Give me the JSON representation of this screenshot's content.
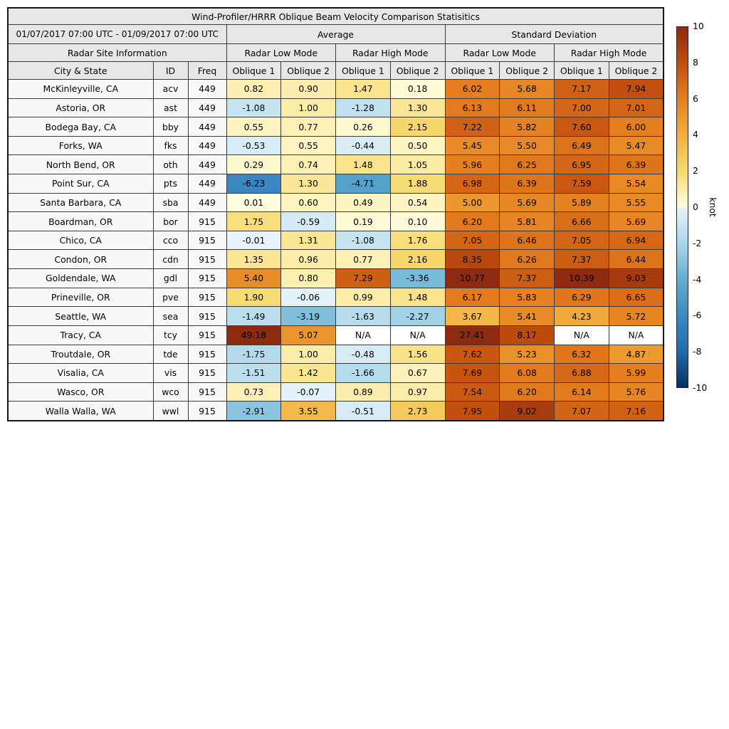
{
  "chart_data": {
    "type": "heatmap",
    "title": "Wind-Profiler/HRRR Oblique Beam Velocity Comparison Statisitics",
    "header": {
      "date_range": "01/07/2017 07:00 UTC - 01/09/2017 07:00 UTC",
      "group_average": "Average",
      "group_std_dev": "Standard Deviation",
      "site_info": "Radar Site Information",
      "radar_low_mode": "Radar Low Mode",
      "radar_high_mode": "Radar High Mode",
      "col_city_state": "City & State",
      "col_id": "ID",
      "col_freq": "Freq",
      "col_oblique1": "Oblique 1",
      "col_oblique2": "Oblique 2"
    },
    "value_columns": [
      "avg-low-oblique1",
      "avg-low-oblique2",
      "avg-high-oblique1",
      "avg-high-oblique2",
      "std-low-oblique1",
      "std-low-oblique2",
      "std-high-oblique1",
      "std-high-oblique2"
    ],
    "rows": [
      {
        "city": "McKinleyville, CA",
        "id": "acv",
        "freq": "449",
        "values": [
          "0.82",
          "0.90",
          "1.47",
          "0.18",
          "6.02",
          "5.68",
          "7.17",
          "7.94"
        ]
      },
      {
        "city": "Astoria, OR",
        "id": "ast",
        "freq": "449",
        "values": [
          "-1.08",
          "1.00",
          "-1.28",
          "1.30",
          "6.13",
          "6.11",
          "7.00",
          "7.01"
        ]
      },
      {
        "city": "Bodega Bay, CA",
        "id": "bby",
        "freq": "449",
        "values": [
          "0.55",
          "0.77",
          "0.26",
          "2.15",
          "7.22",
          "5.82",
          "7.60",
          "6.00"
        ]
      },
      {
        "city": "Forks, WA",
        "id": "fks",
        "freq": "449",
        "values": [
          "-0.53",
          "0.55",
          "-0.44",
          "0.50",
          "5.45",
          "5.50",
          "6.49",
          "5.47"
        ]
      },
      {
        "city": "North Bend, OR",
        "id": "oth",
        "freq": "449",
        "values": [
          "0.29",
          "0.74",
          "1.48",
          "1.05",
          "5.96",
          "6.25",
          "6.95",
          "6.39"
        ]
      },
      {
        "city": "Point Sur, CA",
        "id": "pts",
        "freq": "449",
        "values": [
          "-6.23",
          "1.30",
          "-4.71",
          "1.88",
          "6.98",
          "6.39",
          "7.59",
          "5.54"
        ]
      },
      {
        "city": "Santa Barbara, CA",
        "id": "sba",
        "freq": "449",
        "values": [
          "0.01",
          "0.60",
          "0.49",
          "0.54",
          "5.00",
          "5.69",
          "5.89",
          "5.55"
        ]
      },
      {
        "city": "Boardman, OR",
        "id": "bor",
        "freq": "915",
        "values": [
          "1.75",
          "-0.59",
          "0.19",
          "0.10",
          "6.20",
          "5.81",
          "6.66",
          "5.69"
        ]
      },
      {
        "city": "Chico, CA",
        "id": "cco",
        "freq": "915",
        "values": [
          "-0.01",
          "1.31",
          "-1.08",
          "1.76",
          "7.05",
          "6.46",
          "7.05",
          "6.94"
        ]
      },
      {
        "city": "Condon, OR",
        "id": "cdn",
        "freq": "915",
        "values": [
          "1.35",
          "0.96",
          "0.77",
          "2.16",
          "8.35",
          "6.26",
          "7.37",
          "6.44"
        ]
      },
      {
        "city": "Goldendale, WA",
        "id": "gdl",
        "freq": "915",
        "values": [
          "5.40",
          "0.80",
          "7.29",
          "-3.36",
          "10.77",
          "7.37",
          "10.39",
          "9.03"
        ]
      },
      {
        "city": "Prineville, OR",
        "id": "pve",
        "freq": "915",
        "values": [
          "1.90",
          "-0.06",
          "0.99",
          "1.48",
          "6.17",
          "5.83",
          "6.29",
          "6.65"
        ]
      },
      {
        "city": "Seattle, WA",
        "id": "sea",
        "freq": "915",
        "values": [
          "-1.49",
          "-3.19",
          "-1.63",
          "-2.27",
          "3.67",
          "5.41",
          "4.23",
          "5.72"
        ]
      },
      {
        "city": "Tracy, CA",
        "id": "tcy",
        "freq": "915",
        "values": [
          "49.18",
          "5.07",
          "N/A",
          "N/A",
          "27.41",
          "8.17",
          "N/A",
          "N/A"
        ]
      },
      {
        "city": "Troutdale, OR",
        "id": "tde",
        "freq": "915",
        "values": [
          "-1.75",
          "1.00",
          "-0.48",
          "1.56",
          "7.62",
          "5.23",
          "6.32",
          "4.87"
        ]
      },
      {
        "city": "Visalia, CA",
        "id": "vis",
        "freq": "915",
        "values": [
          "-1.51",
          "1.42",
          "-1.66",
          "0.67",
          "7.69",
          "6.08",
          "6.88",
          "5.99"
        ]
      },
      {
        "city": "Wasco, OR",
        "id": "wco",
        "freq": "915",
        "values": [
          "0.73",
          "-0.07",
          "0.89",
          "0.97",
          "7.54",
          "6.20",
          "6.14",
          "5.76"
        ]
      },
      {
        "city": "Walla Walla, WA",
        "id": "wwl",
        "freq": "915",
        "values": [
          "-2.91",
          "3.55",
          "-0.51",
          "2.73",
          "7.95",
          "9.02",
          "7.07",
          "7.16"
        ]
      }
    ],
    "colorbar": {
      "label": "knot",
      "vmin": -10,
      "vmax": 10,
      "ticks": [
        10,
        8,
        6,
        4,
        2,
        0,
        -2,
        -4,
        -6,
        -8,
        -10
      ],
      "positive_anchors": [
        [
          0,
          "#FFFDE0"
        ],
        [
          2,
          "#F7DA6E"
        ],
        [
          4,
          "#F2AF3F"
        ],
        [
          6,
          "#E57E1F"
        ],
        [
          8,
          "#C24E0E"
        ],
        [
          10,
          "#8E2A0E"
        ]
      ],
      "negative_anchors": [
        [
          0,
          "#E7F3FA"
        ],
        [
          -2,
          "#ABD7EA"
        ],
        [
          -4,
          "#62ADD2"
        ],
        [
          -6,
          "#3B8BC2"
        ],
        [
          -8,
          "#1D6CB0"
        ],
        [
          -10,
          "#09305F"
        ]
      ],
      "na_color": "#FFFFFF"
    }
  }
}
